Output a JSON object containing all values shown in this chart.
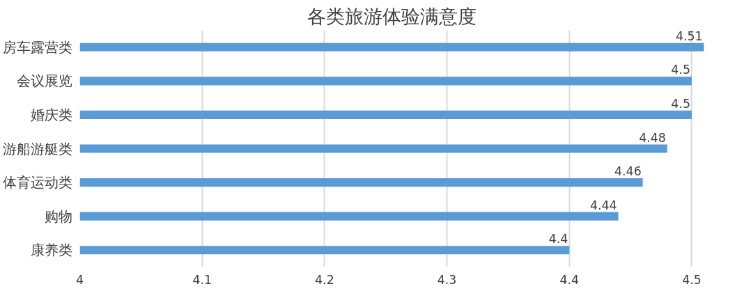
{
  "chart_data": {
    "type": "bar",
    "orientation": "horizontal",
    "title": "各类旅游体验满意度",
    "categories": [
      "房车露营类",
      "会议展览",
      "婚庆类",
      "游船游艇类",
      "体育运动类",
      "购物",
      "康养类"
    ],
    "values": [
      4.51,
      4.5,
      4.5,
      4.48,
      4.46,
      4.44,
      4.4
    ],
    "color": "#5b9bd5",
    "xlim": [
      4,
      4.51
    ],
    "xticks": [
      4,
      4.1,
      4.2,
      4.3,
      4.4,
      4.5
    ],
    "grid": "x",
    "data_labels": true
  }
}
